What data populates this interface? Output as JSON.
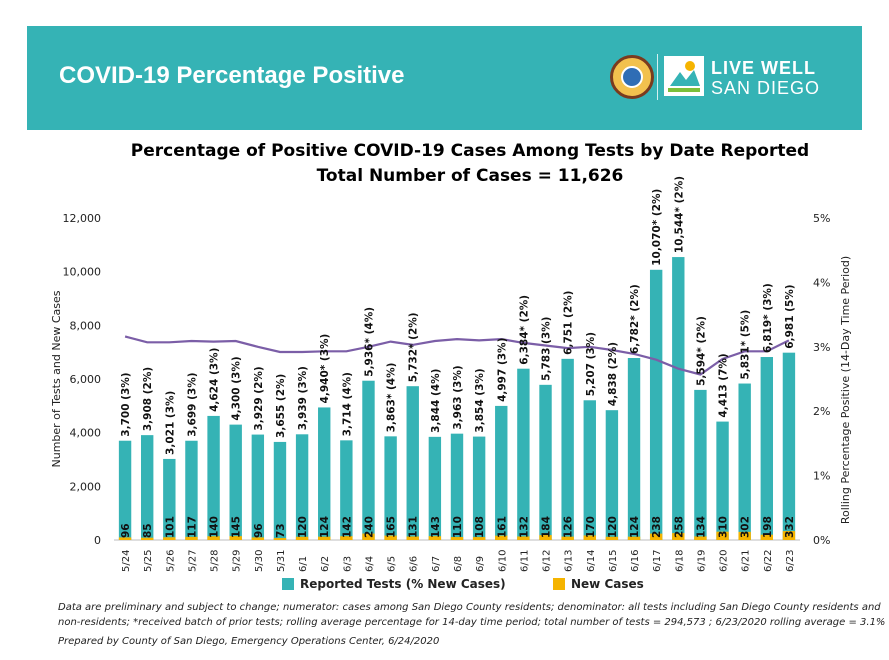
{
  "header": {
    "title": "COVID-19 Percentage Positive",
    "brand_line1": "LIVE WELL",
    "brand_line2": "SAN DIEGO"
  },
  "colors": {
    "banner": "#35b3b5",
    "bars": "#35b3b5",
    "new_cases": "#f5b400",
    "rolling_line": "#7b5ea7"
  },
  "chart_data": {
    "type": "bar",
    "title": "Percentage of Positive COVID-19 Cases Among Tests by Date Reported",
    "subtitle": "Total Number of Cases = 11,626",
    "ylabel": "Number of Tests and New Cases",
    "y2label": "Rolling Percentage Positive (14-Day Time Period)",
    "ylim": [
      0,
      12000
    ],
    "y2lim": [
      0,
      5
    ],
    "yticks": [
      "0",
      "2,000",
      "4,000",
      "6,000",
      "8,000",
      "10,000",
      "12,000"
    ],
    "y2ticks": [
      "0%",
      "1%",
      "2%",
      "3%",
      "4%",
      "5%"
    ],
    "grid": false,
    "legend_position": "bottom",
    "categories": [
      "5/24",
      "5/25",
      "5/26",
      "5/27",
      "5/28",
      "5/29",
      "5/30",
      "5/31",
      "6/1",
      "6/2",
      "6/3",
      "6/4",
      "6/5",
      "6/6",
      "6/7",
      "6/8",
      "6/9",
      "6/10",
      "6/11",
      "6/12",
      "6/13",
      "6/14",
      "6/15",
      "6/16",
      "6/17",
      "6/18",
      "6/19",
      "6/20",
      "6/21",
      "6/22",
      "6/23"
    ],
    "series": [
      {
        "name": "Reported Tests (% New Cases)",
        "values": [
          3700,
          3908,
          3021,
          3699,
          4624,
          4300,
          3929,
          3655,
          3939,
          4940,
          3714,
          5936,
          3863,
          5732,
          3844,
          3963,
          3854,
          4997,
          6384,
          5783,
          6751,
          5207,
          4838,
          6782,
          10070,
          10544,
          5594,
          4413,
          5831,
          6819,
          6981
        ],
        "labels": [
          "3,700 (3%)",
          "3,908 (2%)",
          "3,021 (3%)",
          "3,699 (3%)",
          "4,624 (3%)",
          "4,300 (3%)",
          "3,929 (2%)",
          "3,655 (2%)",
          "3,939 (3%)",
          "4,940* (3%)",
          "3,714 (4%)",
          "5,936* (4%)",
          "3,863* (4%)",
          "5,732* (2%)",
          "3,844 (4%)",
          "3,963 (3%)",
          "3,854 (3%)",
          "4,997 (3%)",
          "6,384* (2%)",
          "5,783 (3%)",
          "6,751 (2%)",
          "5,207 (3%)",
          "4,838 (2%)",
          "6,782* (2%)",
          "10,070* (2%)",
          "10,544* (2%)",
          "5,594* (2%)",
          "4,413 (7%)",
          "5,831* (5%)",
          "6,819* (3%)",
          "6,981 (5%)"
        ]
      },
      {
        "name": "New Cases",
        "values": [
          96,
          85,
          101,
          117,
          140,
          145,
          96,
          73,
          120,
          124,
          142,
          240,
          165,
          131,
          143,
          110,
          108,
          161,
          132,
          184,
          126,
          170,
          120,
          124,
          238,
          258,
          134,
          310,
          302,
          198,
          332
        ]
      },
      {
        "name": "Rolling Percentage Positive",
        "axis": "right",
        "values": [
          3.16,
          3.07,
          3.07,
          3.09,
          3.08,
          3.09,
          3.0,
          2.92,
          2.92,
          2.93,
          2.93,
          3.0,
          3.08,
          3.03,
          3.09,
          3.12,
          3.1,
          3.12,
          3.06,
          3.02,
          2.98,
          3.0,
          2.95,
          2.89,
          2.8,
          2.66,
          2.57,
          2.81,
          2.93,
          2.93,
          3.1
        ]
      }
    ]
  },
  "footnotes": {
    "line1": "Data are preliminary and subject to change; numerator: cases among San Diego County residents; denominator: all tests including San Diego County residents and",
    "line2": "non-residents; *received batch of prior tests; rolling average percentage for 14-day time period; total number of tests = 294,573 ; 6/23/2020 rolling average = 3.1%",
    "line3": "Prepared by County of San Diego, Emergency Operations Center, 6/24/2020"
  }
}
